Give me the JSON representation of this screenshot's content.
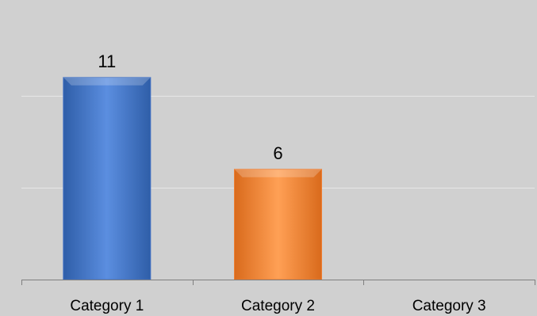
{
  "chart_data": {
    "type": "bar",
    "categories": [
      "Category 1",
      "Category 2",
      "Category 3"
    ],
    "values": [
      11,
      6,
      null
    ],
    "data_labels": [
      "11",
      "6",
      ""
    ],
    "title": "",
    "xlabel": "",
    "ylabel": "",
    "ylim": [
      0,
      15
    ],
    "grid": true,
    "legend": "none",
    "bar_colors": [
      "#4472c4",
      "#ed7d31",
      "#a5a5a5"
    ],
    "background_color": "#d0d0d0",
    "gridline_color": "#e6e6e6",
    "axis_color": "#7f7f7f"
  }
}
